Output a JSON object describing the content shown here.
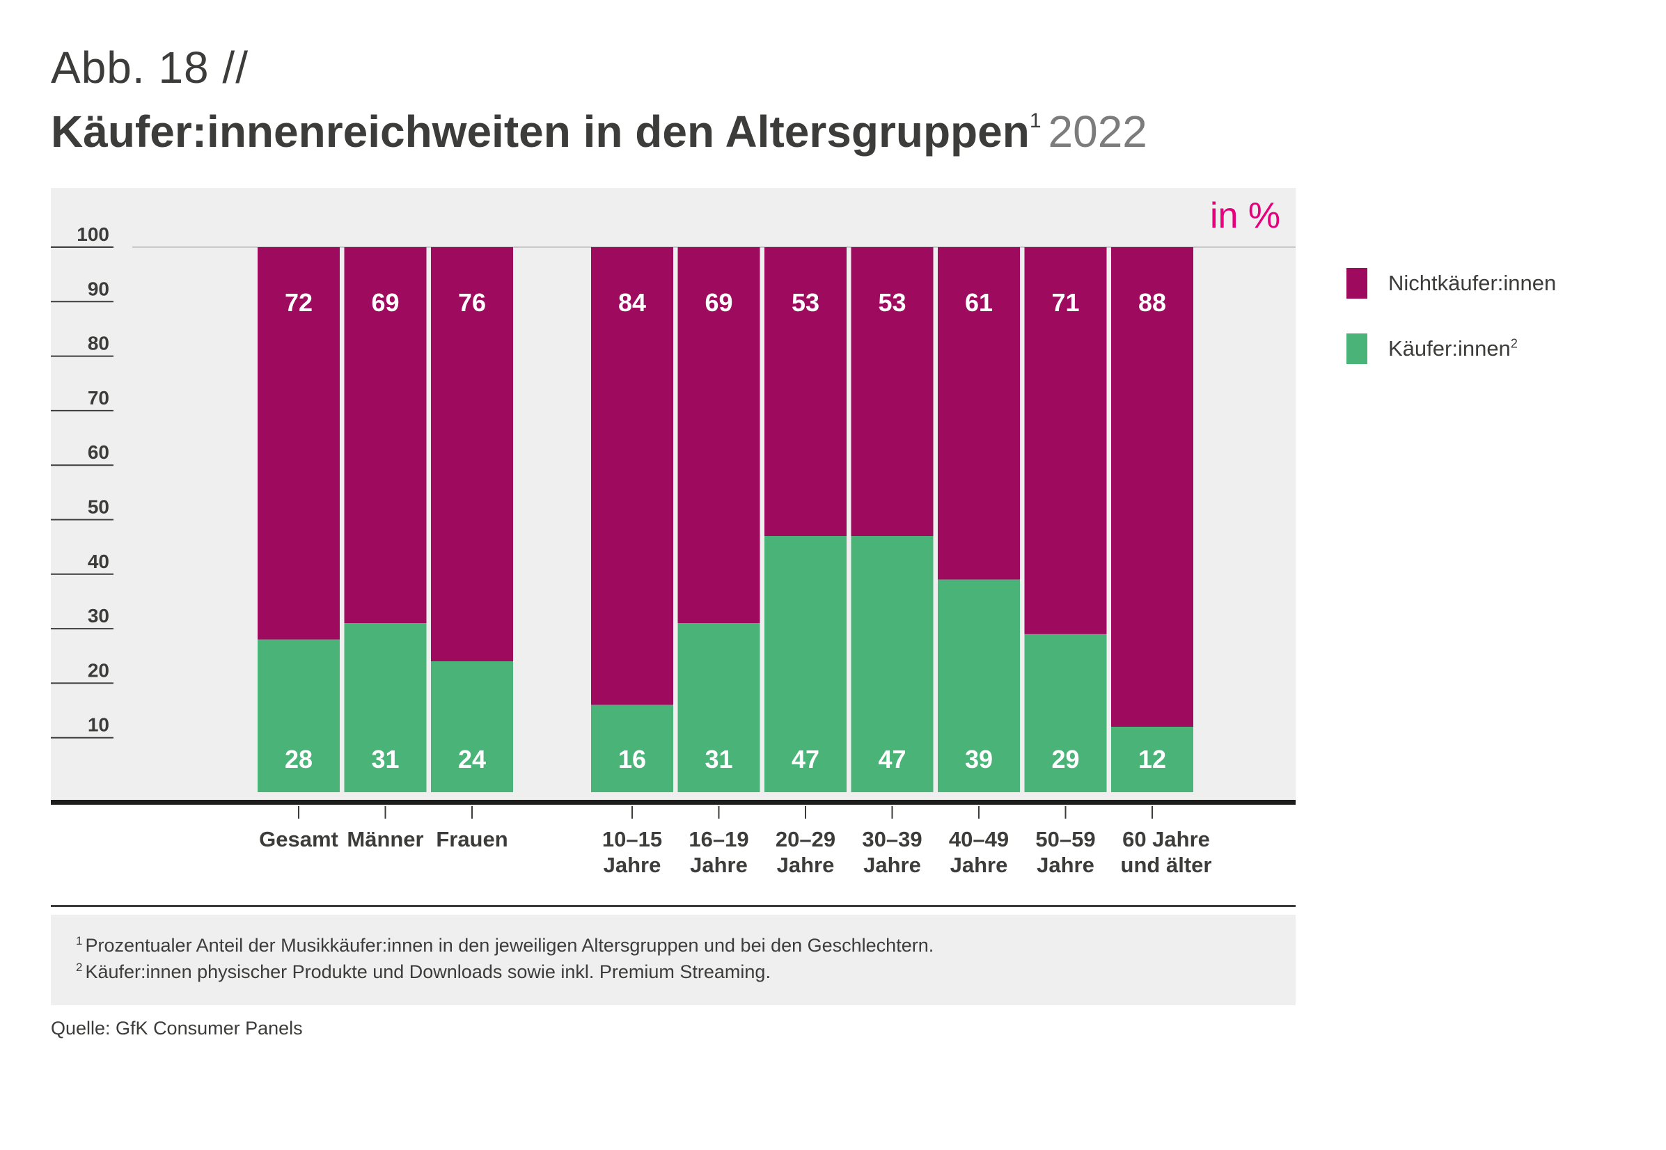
{
  "header": {
    "kicker": "Abb. 18 //",
    "title": "Käufer:innenreichweiten in den Altersgruppen",
    "title_sup": "1",
    "year": "2022"
  },
  "unit_label": "in %",
  "legend": [
    {
      "label": "Nichtkäufer:innen",
      "sup": "",
      "color": "#9e0a5e"
    },
    {
      "label": "Käufer:innen",
      "sup": "2",
      "color": "#4ab377"
    }
  ],
  "chart_data": {
    "type": "bar",
    "stacked": true,
    "groups": [
      {
        "categories": [
          [
            "Gesamt"
          ],
          [
            "Männer"
          ],
          [
            "Frauen"
          ]
        ]
      },
      {
        "categories": [
          [
            "10–15",
            "Jahre"
          ],
          [
            "16–19",
            "Jahre"
          ],
          [
            "20–29",
            "Jahre"
          ],
          [
            "30–39",
            "Jahre"
          ],
          [
            "40–49",
            "Jahre"
          ],
          [
            "50–59",
            "Jahre"
          ],
          [
            "60 Jahre",
            "und älter"
          ]
        ]
      }
    ],
    "series": [
      {
        "name": "Käufer:innen",
        "color": "#4ab377",
        "values": [
          28,
          31,
          24,
          16,
          31,
          47,
          47,
          39,
          29,
          12
        ]
      },
      {
        "name": "Nichtkäufer:innen",
        "color": "#9e0a5e",
        "values": [
          72,
          69,
          76,
          84,
          69,
          53,
          53,
          61,
          71,
          88
        ]
      }
    ],
    "yticks": [
      10,
      20,
      30,
      40,
      50,
      60,
      70,
      80,
      90,
      100
    ],
    "ylim": [
      0,
      100
    ],
    "grid": false,
    "legend_position": "right"
  },
  "footnotes": [
    {
      "sup": "1",
      "text": "Prozentualer Anteil der Musikkäufer:innen in den jeweiligen Altersgruppen und bei den Geschlechtern."
    },
    {
      "sup": "2",
      "text": "Käufer:innen physischer Produkte und Downloads sowie inkl. Premium Streaming."
    }
  ],
  "source": "Quelle: GfK Consumer Panels"
}
